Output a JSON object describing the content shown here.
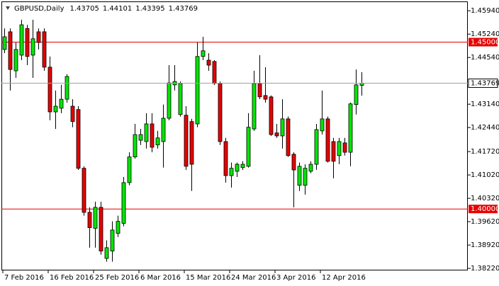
{
  "chart_data": {
    "type": "candlestick",
    "title": "GBPUSD,Daily",
    "categories": [
      "7 Feb 2016",
      null,
      null,
      null,
      null,
      null,
      null,
      null,
      "16 Feb 2016",
      null,
      null,
      null,
      null,
      null,
      null,
      null,
      "25 Feb 2016",
      null,
      null,
      null,
      null,
      null,
      null,
      null,
      "6 Mar 2016",
      null,
      null,
      null,
      null,
      null,
      null,
      null,
      "15 Mar 2016",
      null,
      null,
      null,
      null,
      null,
      null,
      null,
      "24 Mar 2016",
      null,
      null,
      null,
      null,
      null,
      null,
      null,
      "3 Apr 2016",
      null,
      null,
      null,
      null,
      null,
      null,
      null,
      "12 Apr 2016",
      null,
      null,
      null,
      null,
      null,
      null,
      null
    ],
    "open": [
      1.4478,
      1.4531,
      1.4414,
      1.4461,
      1.4541,
      1.4461,
      1.4531,
      1.4531,
      1.4425,
      1.4291,
      1.4302,
      1.4329,
      1.4308,
      1.4298,
      1.4122,
      1.399,
      1.3942,
      1.4005,
      1.3852,
      1.3874,
      1.3927,
      1.3957,
      1.4079,
      1.4156,
      1.4206,
      1.4202,
      1.4255,
      1.4192,
      1.4202,
      1.4272,
      1.4372,
      1.4283,
      1.4281,
      1.4262,
      1.4255,
      1.4457,
      1.4446,
      1.4442,
      1.4376,
      1.4202,
      1.41,
      1.4113,
      1.4124,
      1.4128,
      1.424,
      1.4376,
      1.434,
      1.4336,
      1.4228,
      1.4219,
      1.427,
      1.4164,
      1.4071,
      1.4071,
      1.4113,
      1.4134,
      1.4234,
      1.427,
      1.4202,
      1.416,
      1.4198,
      1.417,
      1.4313,
      1.43705
    ],
    "high": [
      1.4541,
      1.4541,
      1.4499,
      1.4567,
      1.4552,
      1.4567,
      1.4541,
      1.4541,
      1.4457,
      1.4355,
      1.4372,
      1.4404,
      1.4329,
      1.4308,
      1.4128,
      1.4005,
      1.4022,
      1.4022,
      1.3906,
      1.3963,
      1.398,
      1.4096,
      1.417,
      1.4255,
      1.424,
      1.4287,
      1.4287,
      1.4234,
      1.4313,
      1.4431,
      1.4431,
      1.4382,
      1.4308,
      1.427,
      1.4499,
      1.4516,
      1.4467,
      1.4446,
      1.4382,
      1.4213,
      1.4139,
      1.4139,
      1.4143,
      1.4287,
      1.4414,
      1.4461,
      1.4425,
      1.434,
      1.4255,
      1.4329,
      1.4277,
      1.417,
      1.4139,
      1.4134,
      1.4143,
      1.4255,
      1.4355,
      1.4277,
      1.4213,
      1.4213,
      1.4213,
      1.4319,
      1.4418,
      1.44101
    ],
    "low": [
      1.4467,
      1.4355,
      1.4393,
      1.4446,
      1.4431,
      1.4393,
      1.4478,
      1.4414,
      1.4266,
      1.424,
      1.4287,
      1.4319,
      1.4245,
      1.4117,
      1.398,
      1.3884,
      1.3884,
      1.3863,
      1.3842,
      1.3842,
      1.3916,
      1.3948,
      1.4071,
      1.4151,
      1.4192,
      1.4181,
      1.417,
      1.4181,
      1.4124,
      1.4266,
      1.4355,
      1.4277,
      1.4117,
      1.4054,
      1.4245,
      1.4446,
      1.4414,
      1.4372,
      1.4192,
      1.4079,
      1.4064,
      1.4096,
      1.4117,
      1.4124,
      1.4234,
      1.4329,
      1.4319,
      1.4219,
      1.4213,
      1.4181,
      1.4156,
      1.4005,
      1.4054,
      1.4043,
      1.4107,
      1.4117,
      1.4223,
      1.4139,
      1.4092,
      1.4134,
      1.416,
      1.4128,
      1.4283,
      1.43395
    ],
    "close": [
      1.4516,
      1.4418,
      1.4478,
      1.4552,
      1.4457,
      1.451,
      1.4499,
      1.4425,
      1.4291,
      1.4308,
      1.4329,
      1.4397,
      1.4262,
      1.4122,
      1.399,
      1.3944,
      1.4005,
      1.3874,
      1.3884,
      1.3937,
      1.3963,
      1.4079,
      1.4156,
      1.4223,
      1.4223,
      1.4255,
      1.4185,
      1.4213,
      1.4272,
      1.4378,
      1.4382,
      1.4376,
      1.4128,
      1.4134,
      1.4457,
      1.4474,
      1.4431,
      1.4376,
      1.4202,
      1.41,
      1.4122,
      1.4134,
      1.4134,
      1.4245,
      1.4376,
      1.4336,
      1.4329,
      1.4223,
      1.4219,
      1.427,
      1.416,
      1.4117,
      1.4128,
      1.4122,
      1.4134,
      1.4238,
      1.427,
      1.4143,
      1.4143,
      1.4202,
      1.417,
      1.4315,
      1.4372,
      1.43769
    ],
    "up_color": "#00e600",
    "down_color": "#e60000",
    "ylim": [
      1.3818,
      1.4622
    ],
    "yticks": [
      {
        "value": 1.4594,
        "label": "1.45940"
      },
      {
        "value": 1.4524,
        "label": "1.45240"
      },
      {
        "value": 1.4454,
        "label": "1.44540"
      },
      {
        "value": 1.4314,
        "label": "1.43140"
      },
      {
        "value": 1.4244,
        "label": "1.42440"
      },
      {
        "value": 1.4172,
        "label": "1.41720"
      },
      {
        "value": 1.4102,
        "label": "1.41020"
      },
      {
        "value": 1.4032,
        "label": "1.40320"
      },
      {
        "value": 1.3962,
        "label": "1.39620"
      },
      {
        "value": 1.3892,
        "label": "1.38920"
      },
      {
        "value": 1.3822,
        "label": "1.38220"
      }
    ],
    "hlines": [
      {
        "value": 1.45,
        "label": "1.45000"
      },
      {
        "value": 1.4,
        "label": "1.40000"
      }
    ],
    "hline_color": "#e60000",
    "grid": false
  }
}
